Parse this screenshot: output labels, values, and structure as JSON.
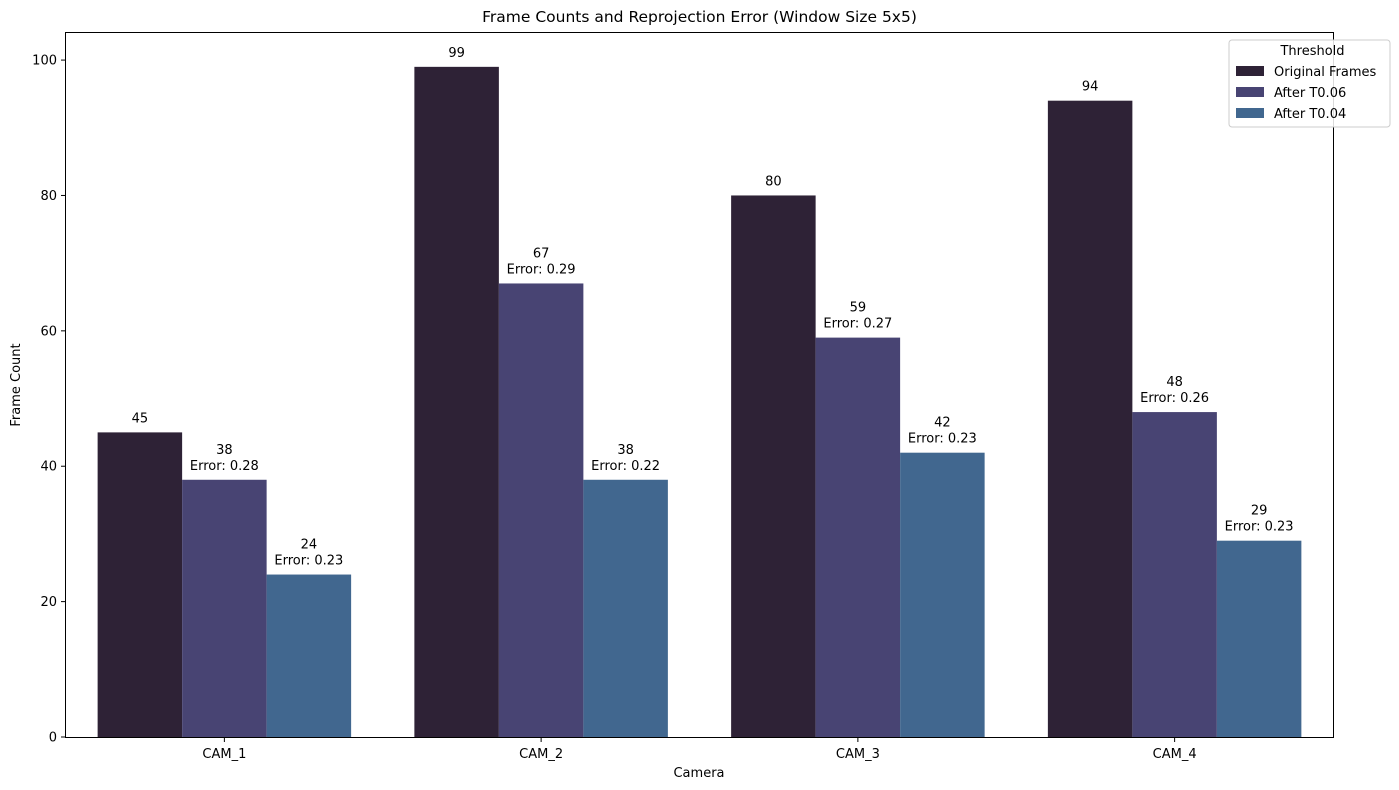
{
  "chart_data": {
    "type": "bar",
    "title": "Frame Counts and Reprojection Error (Window Size 5x5)",
    "xlabel": "Camera",
    "ylabel": "Frame Count",
    "categories": [
      "CAM_1",
      "CAM_2",
      "CAM_3",
      "CAM_4"
    ],
    "ylim": [
      0,
      104
    ],
    "yticks": [
      0,
      20,
      40,
      60,
      80,
      100
    ],
    "grid": false,
    "legend": {
      "title": "Threshold",
      "placement": "top-right"
    },
    "series": [
      {
        "name": "Original Frames",
        "color": "#2e2236",
        "values": [
          45,
          99,
          80,
          94
        ],
        "errors": [
          null,
          null,
          null,
          null
        ]
      },
      {
        "name": "After T0.06",
        "color": "#484473",
        "values": [
          38,
          67,
          59,
          48
        ],
        "errors": [
          "Error: 0.28",
          "Error: 0.29",
          "Error: 0.27",
          "Error: 0.26"
        ]
      },
      {
        "name": "After T0.04",
        "color": "#41678f",
        "values": [
          24,
          38,
          42,
          29
        ],
        "errors": [
          "Error: 0.23",
          "Error: 0.22",
          "Error: 0.23",
          "Error: 0.23"
        ]
      }
    ]
  }
}
